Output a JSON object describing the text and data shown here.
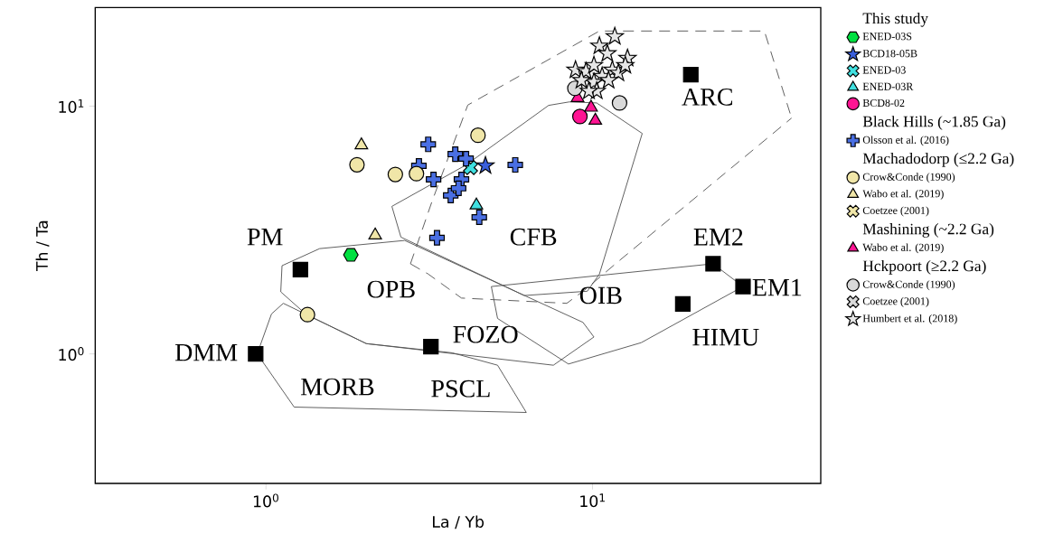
{
  "chart_data": {
    "type": "scatter",
    "xlabel": "La / Yb",
    "ylabel": "Th / Ta",
    "log": "xy",
    "legend": "right",
    "xlim": [
      0.3,
      50
    ],
    "ylim": [
      0.3,
      25
    ],
    "xticks": [
      {
        "value": 1,
        "label": "10$^{0}$"
      },
      {
        "value": 10,
        "label": "10$^{1}$"
      }
    ],
    "yticks": [
      {
        "value": 1,
        "label": "10$^{0}$"
      },
      {
        "value": 10,
        "label": "10$^{1}$"
      }
    ],
    "annotations": [
      "PM",
      "DMM",
      "OPB",
      "FOZO",
      "MORB",
      "PSCL",
      "CFB",
      "ARC",
      "EM2",
      "EM1",
      "OIB",
      "HIMU"
    ],
    "series": [
      {
        "type": "line",
        "color": "#555555",
        "line_style": "solid",
        "marker": "none",
        "x": [
          0.94,
          1.04,
          1.13,
          2.03,
          3.72,
          5.12,
          6.27
        ],
        "values": [
          1.0,
          1.45,
          1.6,
          1.1,
          1.01,
          0.9,
          0.58
        ]
      },
      {
        "type": "line",
        "color": "#555555",
        "line_style": "solid",
        "marker": "none",
        "x": [
          0.94,
          1.22,
          6.27
        ],
        "values": [
          1.0,
          0.61,
          0.58
        ]
      },
      {
        "type": "line",
        "color": "#555555",
        "line_style": "solid",
        "marker": "none",
        "x": [
          1.11,
          1.12,
          1.46,
          2.66,
          9.35,
          10.1
        ],
        "values": [
          1.78,
          2.27,
          2.66,
          2.87,
          1.34,
          1.17
        ]
      },
      {
        "type": "line",
        "color": "#555555",
        "line_style": "solid",
        "marker": "none",
        "x": [
          1.11,
          1.33,
          2.03,
          7.59,
          10.1
        ],
        "values": [
          1.78,
          1.44,
          1.1,
          0.9,
          1.17
        ]
      },
      {
        "type": "line",
        "color": "#555555",
        "line_style": "solid",
        "marker": "none",
        "x": [
          4.9,
          23.4,
          28.9
        ],
        "values": [
          1.87,
          2.31,
          1.87
        ]
      },
      {
        "type": "line",
        "color": "#555555",
        "line_style": "solid",
        "marker": "none",
        "x": [
          4.9,
          5.12,
          8.44,
          14.1,
          28.9
        ],
        "values": [
          1.87,
          1.39,
          0.91,
          1.11,
          1.87
        ]
      },
      {
        "type": "line",
        "color": "#555555",
        "line_style": "solid",
        "marker": "none",
        "x": [
          2.43,
          4.1,
          7.34,
          8.49,
          10.3,
          14.2
        ],
        "values": [
          3.94,
          5.79,
          10.07,
          10.4,
          10.3,
          7.76
        ]
      },
      {
        "type": "line",
        "color": "#555555",
        "line_style": "solid",
        "marker": "none",
        "x": [
          2.43,
          2.59,
          6.18,
          9.64,
          10.5,
          14.2
        ],
        "values": [
          3.94,
          2.96,
          1.72,
          1.79,
          2.1,
          7.76
        ]
      },
      {
        "type": "line",
        "color": "#555555",
        "line_style": "dashed",
        "marker": "none",
        "x": [
          2.77,
          3.22,
          4.15,
          10.5,
          33.6,
          40.7
        ],
        "values": [
          2.31,
          4.1,
          10.1,
          20.1,
          20.1,
          8.95
        ]
      },
      {
        "type": "line",
        "color": "#555555",
        "line_style": "dashed",
        "marker": "none",
        "x": [
          2.77,
          3.14,
          3.97,
          8.34,
          9.46,
          11.9,
          40.7
        ],
        "values": [
          2.31,
          2.1,
          1.68,
          1.6,
          1.81,
          2.34,
          8.95
        ]
      },
      {
        "type": "scatter",
        "color": "#000000",
        "marker": "square",
        "x": [
          1.275,
          0.93,
          3.2,
          18.9,
          23.4,
          28.9,
          20.0
        ],
        "values": [
          2.19,
          1.0,
          1.07,
          1.59,
          2.31,
          1.87,
          13.4
        ]
      },
      {
        "name": "This study",
        "marker": "none"
      },
      {
        "name": "ENED-03S",
        "color": "#00e040",
        "x": [
          1.82
        ],
        "values": [
          2.51
        ]
      },
      {
        "name": "BCD18-05B",
        "color": "#3a5fdc",
        "marker": "star",
        "x": [
          4.7
        ],
        "values": [
          5.75
        ]
      },
      {
        "name": "ENED-03",
        "color": "#40e0e0",
        "marker": "cross",
        "x": [
          4.23
        ],
        "values": [
          5.65
        ]
      },
      {
        "name": "ENED-03R",
        "color": "#40e0e0",
        "marker": "triangle",
        "x": [
          4.41
        ],
        "values": [
          3.98
        ]
      },
      {
        "name": "BCD8-02",
        "color": "#ff1493",
        "marker": "circle",
        "x": [
          9.15
        ],
        "values": [
          9.08
        ]
      },
      {
        "name": "Black Hills  (~1.85 Ga)",
        "marker": "none"
      },
      {
        "name": "Olsson et al. (2016)",
        "color": "#4a6fe3",
        "marker": "plus",
        "x": [
          3.14,
          2.94,
          3.26,
          3.68,
          3.34,
          3.8,
          3.97,
          5.8,
          4.5,
          4.1,
          3.89
        ],
        "values": [
          7.01,
          5.74,
          5.06,
          4.36,
          2.94,
          6.4,
          5.06,
          5.79,
          3.56,
          6.14,
          4.66
        ]
      },
      {
        "name": "Machadodorp (≤2.2 Ga)",
        "marker": "none"
      },
      {
        "name": "Crow&Conde (1990)",
        "color": "#f0e6a8",
        "marker": "circle",
        "x": [
          1.9,
          2.49,
          2.89,
          4.46,
          1.34
        ],
        "values": [
          5.8,
          5.3,
          5.34,
          7.63,
          1.44
        ]
      },
      {
        "name": "Wabo et al. (2019)",
        "color": "#f0e6a8",
        "marker": "triangle",
        "x": [
          1.96,
          2.16
        ],
        "values": [
          6.96,
          3.01
        ]
      },
      {
        "name": "Coetzee (2001)",
        "color": "#f0e6a8",
        "marker": "cross"
      },
      {
        "name": "Mashining (~2.2 Ga)",
        "marker": "none"
      },
      {
        "name": "Wabo et al. (2019)",
        "color": "#ff1493",
        "marker": "triangle",
        "x": [
          9.0,
          9.9,
          10.2
        ],
        "values": [
          10.8,
          9.87,
          8.75
        ]
      },
      {
        "name": "Hckpoort (≥2.2 Ga)",
        "marker": "none"
      },
      {
        "name": "Crow&Conde (1990)",
        "color": "#d9d9d9",
        "marker": "circle",
        "x": [
          8.83,
          12.1
        ],
        "values": [
          11.8,
          10.3
        ]
      },
      {
        "name": "Coetzee (2001)",
        "color": "#d9d9d9",
        "marker": "cross"
      },
      {
        "name": "Humbert et al. (2018)",
        "color": "#e6e6e6",
        "marker": "star",
        "x": [
          11.7,
          10.5,
          11.1,
          12.8,
          8.87,
          9.55,
          10.1,
          10.7,
          11.5,
          12.0,
          10.1,
          11.2,
          10.3,
          9.75,
          9.25,
          12.6
        ],
        "values": [
          19.1,
          17.5,
          16.3,
          15.6,
          14.0,
          13.8,
          14.6,
          13.2,
          14.0,
          13.6,
          12.5,
          12.7,
          11.5,
          11.5,
          12.7,
          14.6
        ]
      }
    ]
  }
}
